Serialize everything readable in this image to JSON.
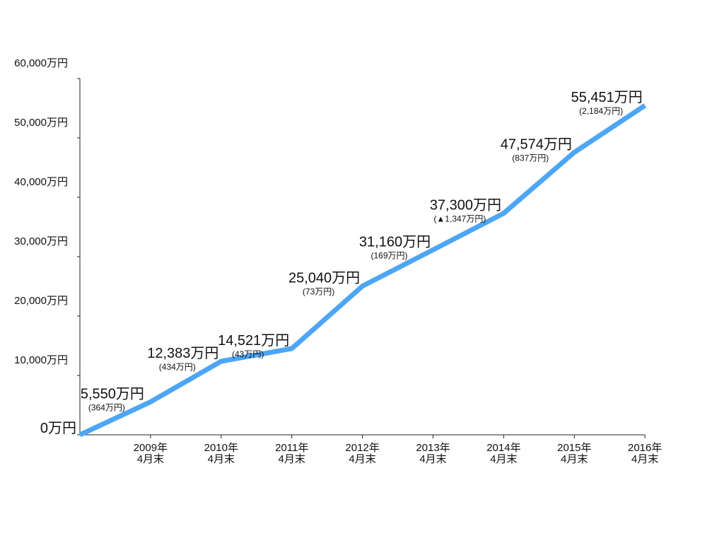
{
  "chart_data": {
    "type": "line",
    "title": "",
    "xlabel": "",
    "ylabel": "",
    "ylim": [
      0,
      60000
    ],
    "grid": false,
    "legend": "none",
    "line_color": "#4da6f5",
    "y_ticks": [
      {
        "value": 0,
        "label": "0万円"
      },
      {
        "value": 10000,
        "label": "10,000万円"
      },
      {
        "value": 20000,
        "label": "20,000万円"
      },
      {
        "value": 30000,
        "label": "30,000万円"
      },
      {
        "value": 40000,
        "label": "40,000万円"
      },
      {
        "value": 50000,
        "label": "50,000万円"
      },
      {
        "value": 60000,
        "label": "60,000万円"
      }
    ],
    "x_ticks": [
      {
        "index": 1,
        "line1": "2009年",
        "line2": "4月末"
      },
      {
        "index": 2,
        "line1": "2010年",
        "line2": "4月末"
      },
      {
        "index": 3,
        "line1": "2011年",
        "line2": "4月末"
      },
      {
        "index": 4,
        "line1": "2012年",
        "line2": "4月末"
      },
      {
        "index": 5,
        "line1": "2013年",
        "line2": "4月末"
      },
      {
        "index": 6,
        "line1": "2014年",
        "line2": "4月末"
      },
      {
        "index": 7,
        "line1": "2015年",
        "line2": "4月末"
      },
      {
        "index": 8,
        "line1": "2016年",
        "line2": "4月末"
      }
    ],
    "points": [
      {
        "index": 0,
        "value": 0,
        "label": "",
        "sub": ""
      },
      {
        "index": 1,
        "value": 5550,
        "label": "5,550万円",
        "sub": "(364万円)"
      },
      {
        "index": 2,
        "value": 12383,
        "label": "12,383万円",
        "sub": "(434万円)"
      },
      {
        "index": 3,
        "value": 14521,
        "label": "14,521万円",
        "sub": "(43万円)"
      },
      {
        "index": 4,
        "value": 25040,
        "label": "25,040万円",
        "sub": "(73万円)"
      },
      {
        "index": 5,
        "value": 31160,
        "label": "31,160万円",
        "sub": "(169万円)"
      },
      {
        "index": 6,
        "value": 37300,
        "label": "37,300万円",
        "sub": "(▲1,347万円)"
      },
      {
        "index": 7,
        "value": 47574,
        "label": "47,574万円",
        "sub": "(837万円)"
      },
      {
        "index": 8,
        "value": 55451,
        "label": "55,451万円",
        "sub": "(2,184万円)"
      }
    ]
  }
}
